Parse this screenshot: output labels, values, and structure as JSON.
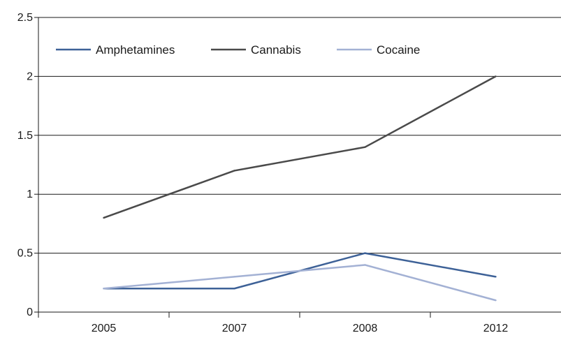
{
  "chart_data": {
    "type": "line",
    "title": "",
    "xlabel": "",
    "ylabel": "",
    "categories": [
      "2005",
      "2007",
      "2008",
      "2012"
    ],
    "ylim": [
      0,
      2.5
    ],
    "yticks": [
      "0",
      "0.5",
      "1",
      "1.5",
      "2",
      "2.5"
    ],
    "grid": true,
    "legend_position": "top-left",
    "series": [
      {
        "name": "Amphetamines",
        "color": "#3d6197",
        "values": [
          0.2,
          0.2,
          0.5,
          0.3
        ]
      },
      {
        "name": "Cannabis",
        "color": "#4a4a4a",
        "values": [
          0.8,
          1.2,
          1.4,
          2.0
        ]
      },
      {
        "name": "Cocaine",
        "color": "#a3b1d4",
        "values": [
          0.2,
          0.3,
          0.4,
          0.1
        ]
      }
    ]
  }
}
